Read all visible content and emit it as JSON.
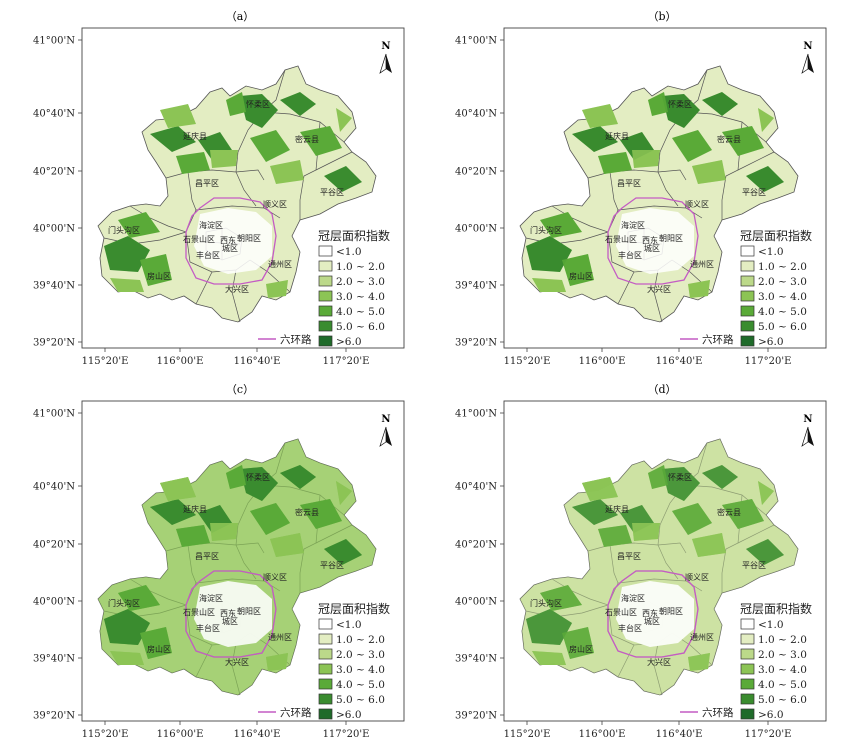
{
  "panels": [
    {
      "id": "a",
      "label": "（a）",
      "intensity": 0
    },
    {
      "id": "b",
      "label": "（b）",
      "intensity": 0.2
    },
    {
      "id": "c",
      "label": "（c）",
      "intensity": 2
    },
    {
      "id": "d",
      "label": "（d）",
      "intensity": 1
    }
  ],
  "axes": {
    "lat_labels": [
      "41°00'N",
      "40°40'N",
      "40°20'N",
      "40°00'N",
      "39°40'N",
      "39°20'N"
    ],
    "lon_labels": [
      "115°20'E",
      "116°00'E",
      "116°40'E",
      "117°20'E"
    ]
  },
  "north_label": "N",
  "districts": [
    {
      "key": "yanqing",
      "name": "延庆县"
    },
    {
      "key": "huairou",
      "name": "怀柔区"
    },
    {
      "key": "miyun",
      "name": "密云县"
    },
    {
      "key": "pinggu",
      "name": "平谷区"
    },
    {
      "key": "changping",
      "name": "昌平区"
    },
    {
      "key": "shunyi",
      "name": "顺义区"
    },
    {
      "key": "mentougou",
      "name": "门头沟区"
    },
    {
      "key": "haidian",
      "name": "海淀区"
    },
    {
      "key": "shijingshan",
      "name": "石景山区"
    },
    {
      "key": "chaoyang",
      "name": "朝阳区"
    },
    {
      "key": "dongcheng",
      "name": "东"
    },
    {
      "key": "xicheng",
      "name": "西"
    },
    {
      "key": "chengqu",
      "name": "城区"
    },
    {
      "key": "fengtai",
      "name": "丰台区"
    },
    {
      "key": "tongzhou",
      "name": "通州区"
    },
    {
      "key": "fangshan",
      "name": "房山区"
    },
    {
      "key": "daxing",
      "name": "大兴区"
    }
  ],
  "legend": {
    "title": "冠层面积指数",
    "classes": [
      {
        "label": "<1.0",
        "color": "#ffffff"
      },
      {
        "label": "1.0 ~ 2.0",
        "color": "#e3edc2"
      },
      {
        "label": "2.0 ~ 3.0",
        "color": "#bcd98a"
      },
      {
        "label": "3.0 ~ 4.0",
        "color": "#8cc455"
      },
      {
        "label": "4.0 ~ 5.0",
        "color": "#5aaa38"
      },
      {
        "label": "5.0 ~ 6.0",
        "color": "#3a8c2f"
      },
      {
        "label": ">6.0",
        "color": "#1f6b2a"
      }
    ],
    "route_label": "六环路",
    "route_color": "#c45cc4"
  }
}
